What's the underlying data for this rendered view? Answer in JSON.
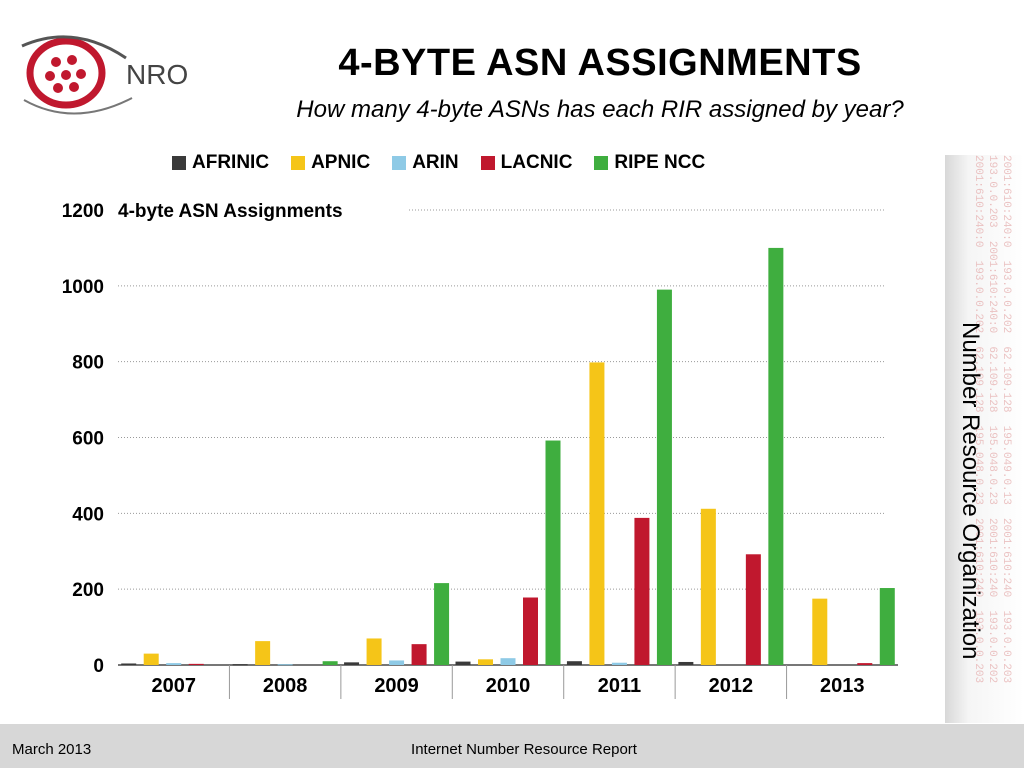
{
  "header": {
    "logo_text": "NRO",
    "title": "4-BYTE ASN ASSIGNMENTS",
    "subtitle": "How many 4-byte ASNs has each RIR assigned by year?"
  },
  "side": {
    "label": "Number Resource Organization",
    "ip_text": "2001:610:240:0  193.0.0.202  62.109.128  195.049.0.13  2001:610:240  193.0.0.203\n193.0.0.203  2001:610:240:0  62.109.128  195.048.0.23  2001:610:240  193.0.0.202\n2001:610:240:0  193.0.0.202  62.109.128  195.048.0.23  2001:610:240  193.0.0.203"
  },
  "footer": {
    "date": "March 2013",
    "center": "Internet Number Resource Report"
  },
  "colors": {
    "AFRINIC": "#3a3a3a",
    "APNIC": "#f5c518",
    "ARIN": "#8ecae6",
    "LACNIC": "#c0182e",
    "RIPE NCC": "#3fae3f"
  },
  "chart_data": {
    "type": "bar",
    "title": "4-byte ASN Assignments",
    "xlabel": "",
    "ylabel": "",
    "ylim": [
      0,
      1200
    ],
    "yticks": [
      0,
      200,
      400,
      600,
      800,
      1000,
      1200
    ],
    "grid": true,
    "legend_position": "top",
    "categories": [
      "2007",
      "2008",
      "2009",
      "2010",
      "2011",
      "2012",
      "2013"
    ],
    "series": [
      {
        "name": "AFRINIC",
        "values": [
          4,
          2,
          7,
          9,
          10,
          8,
          0
        ]
      },
      {
        "name": "APNIC",
        "values": [
          30,
          63,
          70,
          15,
          798,
          412,
          175
        ]
      },
      {
        "name": "ARIN",
        "values": [
          5,
          2,
          12,
          18,
          6,
          0,
          0
        ]
      },
      {
        "name": "LACNIC",
        "values": [
          3,
          0,
          55,
          178,
          388,
          292,
          5
        ]
      },
      {
        "name": "RIPE NCC",
        "values": [
          0,
          10,
          216,
          592,
          990,
          1100,
          203
        ]
      }
    ]
  }
}
